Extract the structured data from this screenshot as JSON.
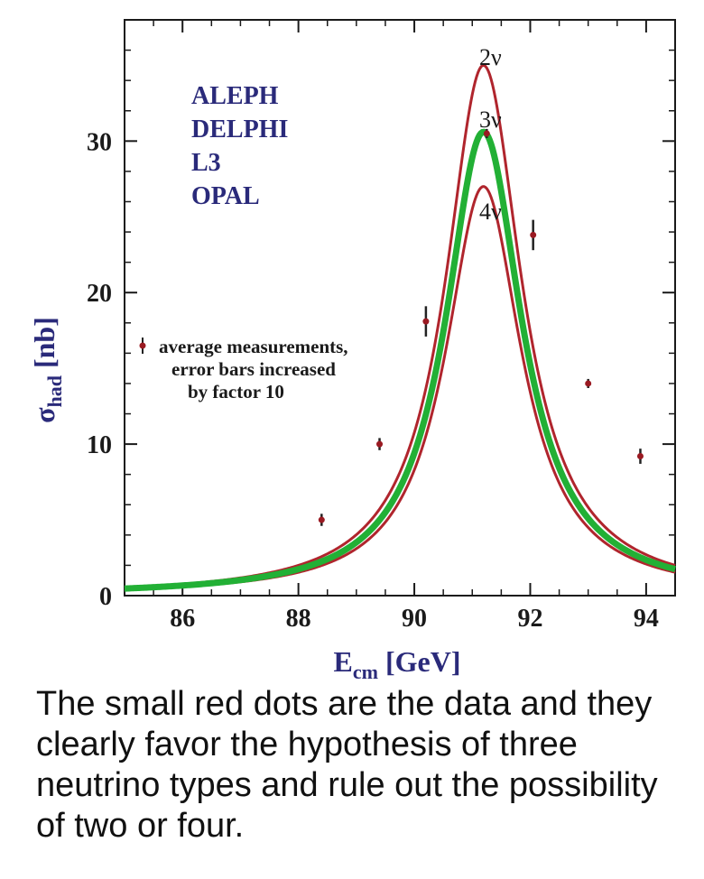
{
  "chart_data": {
    "type": "line",
    "title": "",
    "xlabel": {
      "main": "E",
      "sub": "cm",
      "unit": "[GeV]"
    },
    "ylabel": {
      "main": "σ",
      "sub": "had",
      "unit": "[nb]"
    },
    "xlim": [
      85.0,
      94.5
    ],
    "ylim": [
      0,
      38
    ],
    "x_ticks": [
      86,
      88,
      90,
      92,
      94
    ],
    "x_tick_labels": [
      "86",
      "88",
      "90",
      "92",
      "94"
    ],
    "y_ticks": [
      0,
      10,
      20,
      30
    ],
    "y_tick_labels": [
      "0",
      "10",
      "20",
      "30"
    ],
    "grid": false,
    "experiments": [
      "ALEPH",
      "DELPHI",
      "L3",
      "OPAL"
    ],
    "legend_text": [
      "average measurements,",
      "error bars increased",
      "by factor 10"
    ],
    "legend_position": "middle-left",
    "series": [
      {
        "name": "2ν",
        "label_num": "2",
        "label_sym": "ν",
        "color": "#b0252d",
        "peak": 35.0
      },
      {
        "name": "3ν",
        "label_num": "3",
        "label_sym": "ν",
        "color": "#22b035",
        "peak": 30.6
      },
      {
        "name": "4ν",
        "label_num": "4",
        "label_sym": "ν",
        "color": "#b0252d",
        "peak": 27.0
      }
    ],
    "curve_model": {
      "mass": 91.2,
      "width": 1.6,
      "tail": 0.14
    },
    "points": [
      {
        "x": 88.4,
        "y": 5.0,
        "err": 0.4
      },
      {
        "x": 89.4,
        "y": 10.0,
        "err": 0.4
      },
      {
        "x": 90.2,
        "y": 18.1,
        "err": 1.0
      },
      {
        "x": 91.25,
        "y": 30.5,
        "err": 0.3
      },
      {
        "x": 92.05,
        "y": 23.8,
        "err": 1.0
      },
      {
        "x": 93.0,
        "y": 14.0,
        "err": 0.3
      },
      {
        "x": 93.9,
        "y": 9.2,
        "err": 0.5
      }
    ],
    "colors": {
      "axis": "#1a1a1a",
      "label_text": "#2a2a7a",
      "point": "#9a1a22",
      "errorbar": "#222222"
    }
  },
  "caption": "The small red dots are the data and they clearly favor the hypothesis of three neutrino types and rule out the possibility of two or four."
}
